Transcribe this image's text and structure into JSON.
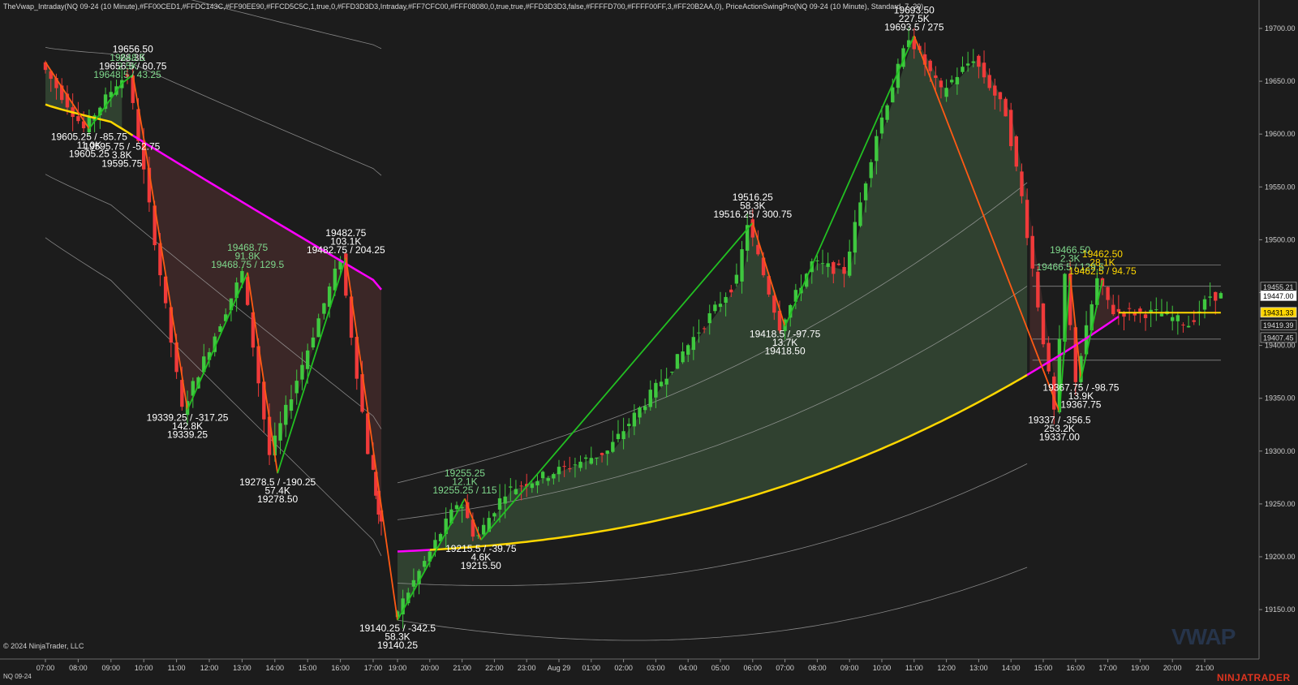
{
  "indicator_line": "TheVwap_Intraday(NQ 09-24 (10 Minute),#FF00CED1,#FFDC143C,#FF90EE90,#FFCD5C5C,1,true,0,#FFD3D3D3,Intraday,#FF7CFC00,#FFF08080,0,true,true,#FFD3D3D3,false,#FFFFD700,#FFFF00FF,3,#FF20B2AA,0), PriceActionSwingPro(NQ 09-24 (10 Minute), Standard, 7, 20)",
  "copyright": "© 2024 NinjaTrader, LLC",
  "instrument": "NQ 09-24",
  "brand": "NINJATRADER",
  "watermark": "VWAP",
  "colors": {
    "background": "#1c1c1c",
    "up_candle": "#3fc83f",
    "down_candle": "#f03a3a",
    "vwap_up": "#ffd700",
    "vwap_down": "#ff00ff",
    "swing_up": "#22c022",
    "swing_down": "#ff5a14",
    "band": "#a9a9a9",
    "fill_green": "#90ee90",
    "fill_red": "#cd5c5c",
    "axis_text": "#cfcfcf",
    "label_white": "#ffffff",
    "label_green": "#7fd88c",
    "label_gold": "#ffd700"
  },
  "chart_data": {
    "type": "candlestick",
    "y_axis": {
      "ticks": [
        19700,
        19650,
        19600,
        19550,
        19500,
        19450,
        19400,
        19350,
        19300,
        19250,
        19200,
        19150
      ],
      "ylim": [
        19130,
        19715
      ],
      "tick_format": "0.00"
    },
    "x_axis": {
      "ticks": [
        "07:00",
        "08:00",
        "09:00",
        "10:00",
        "11:00",
        "12:00",
        "13:00",
        "14:00",
        "15:00",
        "16:00",
        "17:00",
        "19:00",
        "20:00",
        "21:00",
        "22:00",
        "23:00",
        "Aug 29",
        "01:00",
        "02:00",
        "03:00",
        "04:00",
        "05:00",
        "06:00",
        "07:00",
        "08:00",
        "09:00",
        "10:00",
        "11:00",
        "12:00",
        "13:00",
        "14:00",
        "15:00",
        "16:00",
        "17:00",
        "19:00",
        "20:00",
        "21:00"
      ]
    },
    "price_markers": [
      {
        "value": "19455.21",
        "style": "band"
      },
      {
        "value": "19447.00",
        "style": "last"
      },
      {
        "value": "19431.33",
        "style": "vwap"
      },
      {
        "value": "19419.39",
        "style": "band"
      },
      {
        "value": "19407.45",
        "style": "band"
      }
    ],
    "swing_labels": [
      {
        "lines": [
          "19656.50",
          "28.3K",
          "19656.5 / 60.75"
        ],
        "color": "white",
        "time": "09:40",
        "price": 19656.5,
        "side": "above"
      },
      {
        "lines": [
          "19648.5",
          "2.5K",
          "19648.5 / 43.25"
        ],
        "color": "green",
        "time": "09:30",
        "price": 19648.5,
        "side": "above"
      },
      {
        "lines": [
          "19605.25 / -85.75",
          "11.0K",
          "19605.25"
        ],
        "color": "white",
        "time": "08:20",
        "price": 19605.25,
        "side": "below"
      },
      {
        "lines": [
          "19595.75 / -52.75",
          "3.8K",
          "19595.75"
        ],
        "color": "white",
        "time": "09:20",
        "price": 19595.75,
        "side": "below"
      },
      {
        "lines": [
          "19339.25 / -317.25",
          "142.8K",
          "19339.25"
        ],
        "color": "white",
        "time": "11:20",
        "price": 19339.25,
        "side": "below"
      },
      {
        "lines": [
          "19468.75",
          "91.8K",
          "19468.75 / 129.5"
        ],
        "color": "green",
        "time": "13:10",
        "price": 19468.75,
        "side": "above"
      },
      {
        "lines": [
          "19278.5 / -190.25",
          "57.4K",
          "19278.50"
        ],
        "color": "white",
        "time": "14:05",
        "price": 19278.5,
        "side": "below"
      },
      {
        "lines": [
          "19482.75",
          "103.1K",
          "19482.75 / 204.25"
        ],
        "color": "white",
        "time": "16:10",
        "price": 19482.75,
        "side": "above"
      },
      {
        "lines": [
          "19140.25 / -342.5",
          "58.3K",
          "19140.25"
        ],
        "color": "white",
        "time": "18:50",
        "price": 19140.25,
        "side": "below"
      },
      {
        "lines": [
          "19255.25",
          "12.1K",
          "19255.25 / 115"
        ],
        "color": "green",
        "time": "21:00",
        "price": 19255.25,
        "side": "above"
      },
      {
        "lines": [
          "19215.5 / -39.75",
          "4.6K",
          "19215.50"
        ],
        "color": "white",
        "time": "21:40",
        "price": 19215.5,
        "side": "below"
      },
      {
        "lines": [
          "19516.25",
          "58.3K",
          "19516.25 / 300.75"
        ],
        "color": "white",
        "time": "06:10",
        "price": 19516.25,
        "side": "above"
      },
      {
        "lines": [
          "19418.5 / -97.75",
          "13.7K",
          "19418.50"
        ],
        "color": "white",
        "time": "07:00",
        "price": 19418.5,
        "side": "below"
      },
      {
        "lines": [
          "19693.50",
          "227.5K",
          "19693.5 / 275"
        ],
        "color": "white",
        "time": "11:00",
        "price": 19693.5,
        "side": "above"
      },
      {
        "lines": [
          "19337 / -356.5",
          "253.2K",
          "19337.00"
        ],
        "color": "white",
        "time": "15:20",
        "price": 19337.0,
        "side": "below"
      },
      {
        "lines": [
          "19466.50",
          "2.3K",
          "19466.5 / 129.5"
        ],
        "color": "green",
        "time": "15:40",
        "price": 19466.5,
        "side": "above"
      },
      {
        "lines": [
          "19367.75 / -98.75",
          "13.9K",
          "19367.75"
        ],
        "color": "white",
        "time": "16:00",
        "price": 19367.75,
        "side": "below"
      },
      {
        "lines": [
          "19462.50",
          "28.1K",
          "19462.5 / 94.75"
        ],
        "color": "gold",
        "time": "17:10",
        "price": 19462.5,
        "side": "above"
      }
    ]
  }
}
